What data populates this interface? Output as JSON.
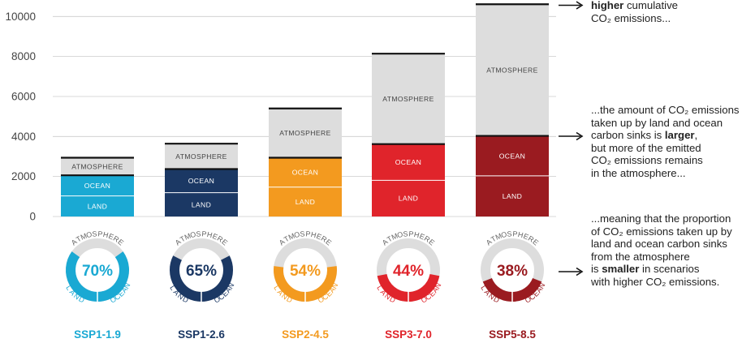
{
  "chart_data": {
    "type": "bar",
    "ylim": [
      0,
      10600
    ],
    "yticks": [
      0,
      2000,
      4000,
      6000,
      8000,
      10000
    ],
    "grid": true,
    "stack_labels": [
      "LAND",
      "OCEAN",
      "ATMOSPHERE"
    ],
    "donut_labels": {
      "top": "ATMOSPHERE",
      "left": "LAND",
      "right": "OCEAN"
    },
    "scenarios": [
      {
        "name": "SSP1-1.9",
        "color": "#1aa9d3",
        "land": 1030,
        "ocean": 1030,
        "atmosphere": 880,
        "percent_label": "70%",
        "percent": 70
      },
      {
        "name": "SSP1-2.6",
        "color": "#1b3864",
        "land": 1190,
        "ocean": 1180,
        "atmosphere": 1270,
        "percent_label": "65%",
        "percent": 65
      },
      {
        "name": "SSP2-4.5",
        "color": "#f39a1f",
        "land": 1470,
        "ocean": 1470,
        "atmosphere": 2460,
        "percent_label": "54%",
        "percent": 54
      },
      {
        "name": "SSP3-7.0",
        "color": "#e0242b",
        "land": 1810,
        "ocean": 1810,
        "atmosphere": 4520,
        "percent_label": "44%",
        "percent": 44
      },
      {
        "name": "SSP5-8.5",
        "color": "#9a1b20",
        "land": 2030,
        "ocean": 2000,
        "atmosphere": 6580,
        "percent_label": "38%",
        "percent": 38
      }
    ]
  },
  "annotations": {
    "a1_bold": "higher",
    "a1_rest1": " cumulative",
    "a1_line2": "CO₂ emissions...",
    "a2_line1": "...the amount of CO₂ emissions",
    "a2_line2": "taken up by land and ocean",
    "a2_line3_pre": "carbon sinks is ",
    "a2_line3_bold": "larger",
    "a2_line3_post": ",",
    "a2_line4": "but more of the emitted",
    "a2_line5": "CO₂ emissions remains",
    "a2_line6": "in the atmosphere...",
    "a3_line1": "...meaning that the proportion",
    "a3_line2": "of CO₂ emissions taken up by",
    "a3_line3": "land and ocean carbon sinks",
    "a3_line4": "from the atmosphere",
    "a3_line5_pre": "is ",
    "a3_line5_bold": "smaller",
    "a3_line5_post": " in scenarios",
    "a3_line6": "with higher CO₂ emissions."
  },
  "colors": {
    "atmosphere": "#dddddd",
    "grid": "#cccccc",
    "text": "#222222",
    "axis_text": "#444444"
  }
}
